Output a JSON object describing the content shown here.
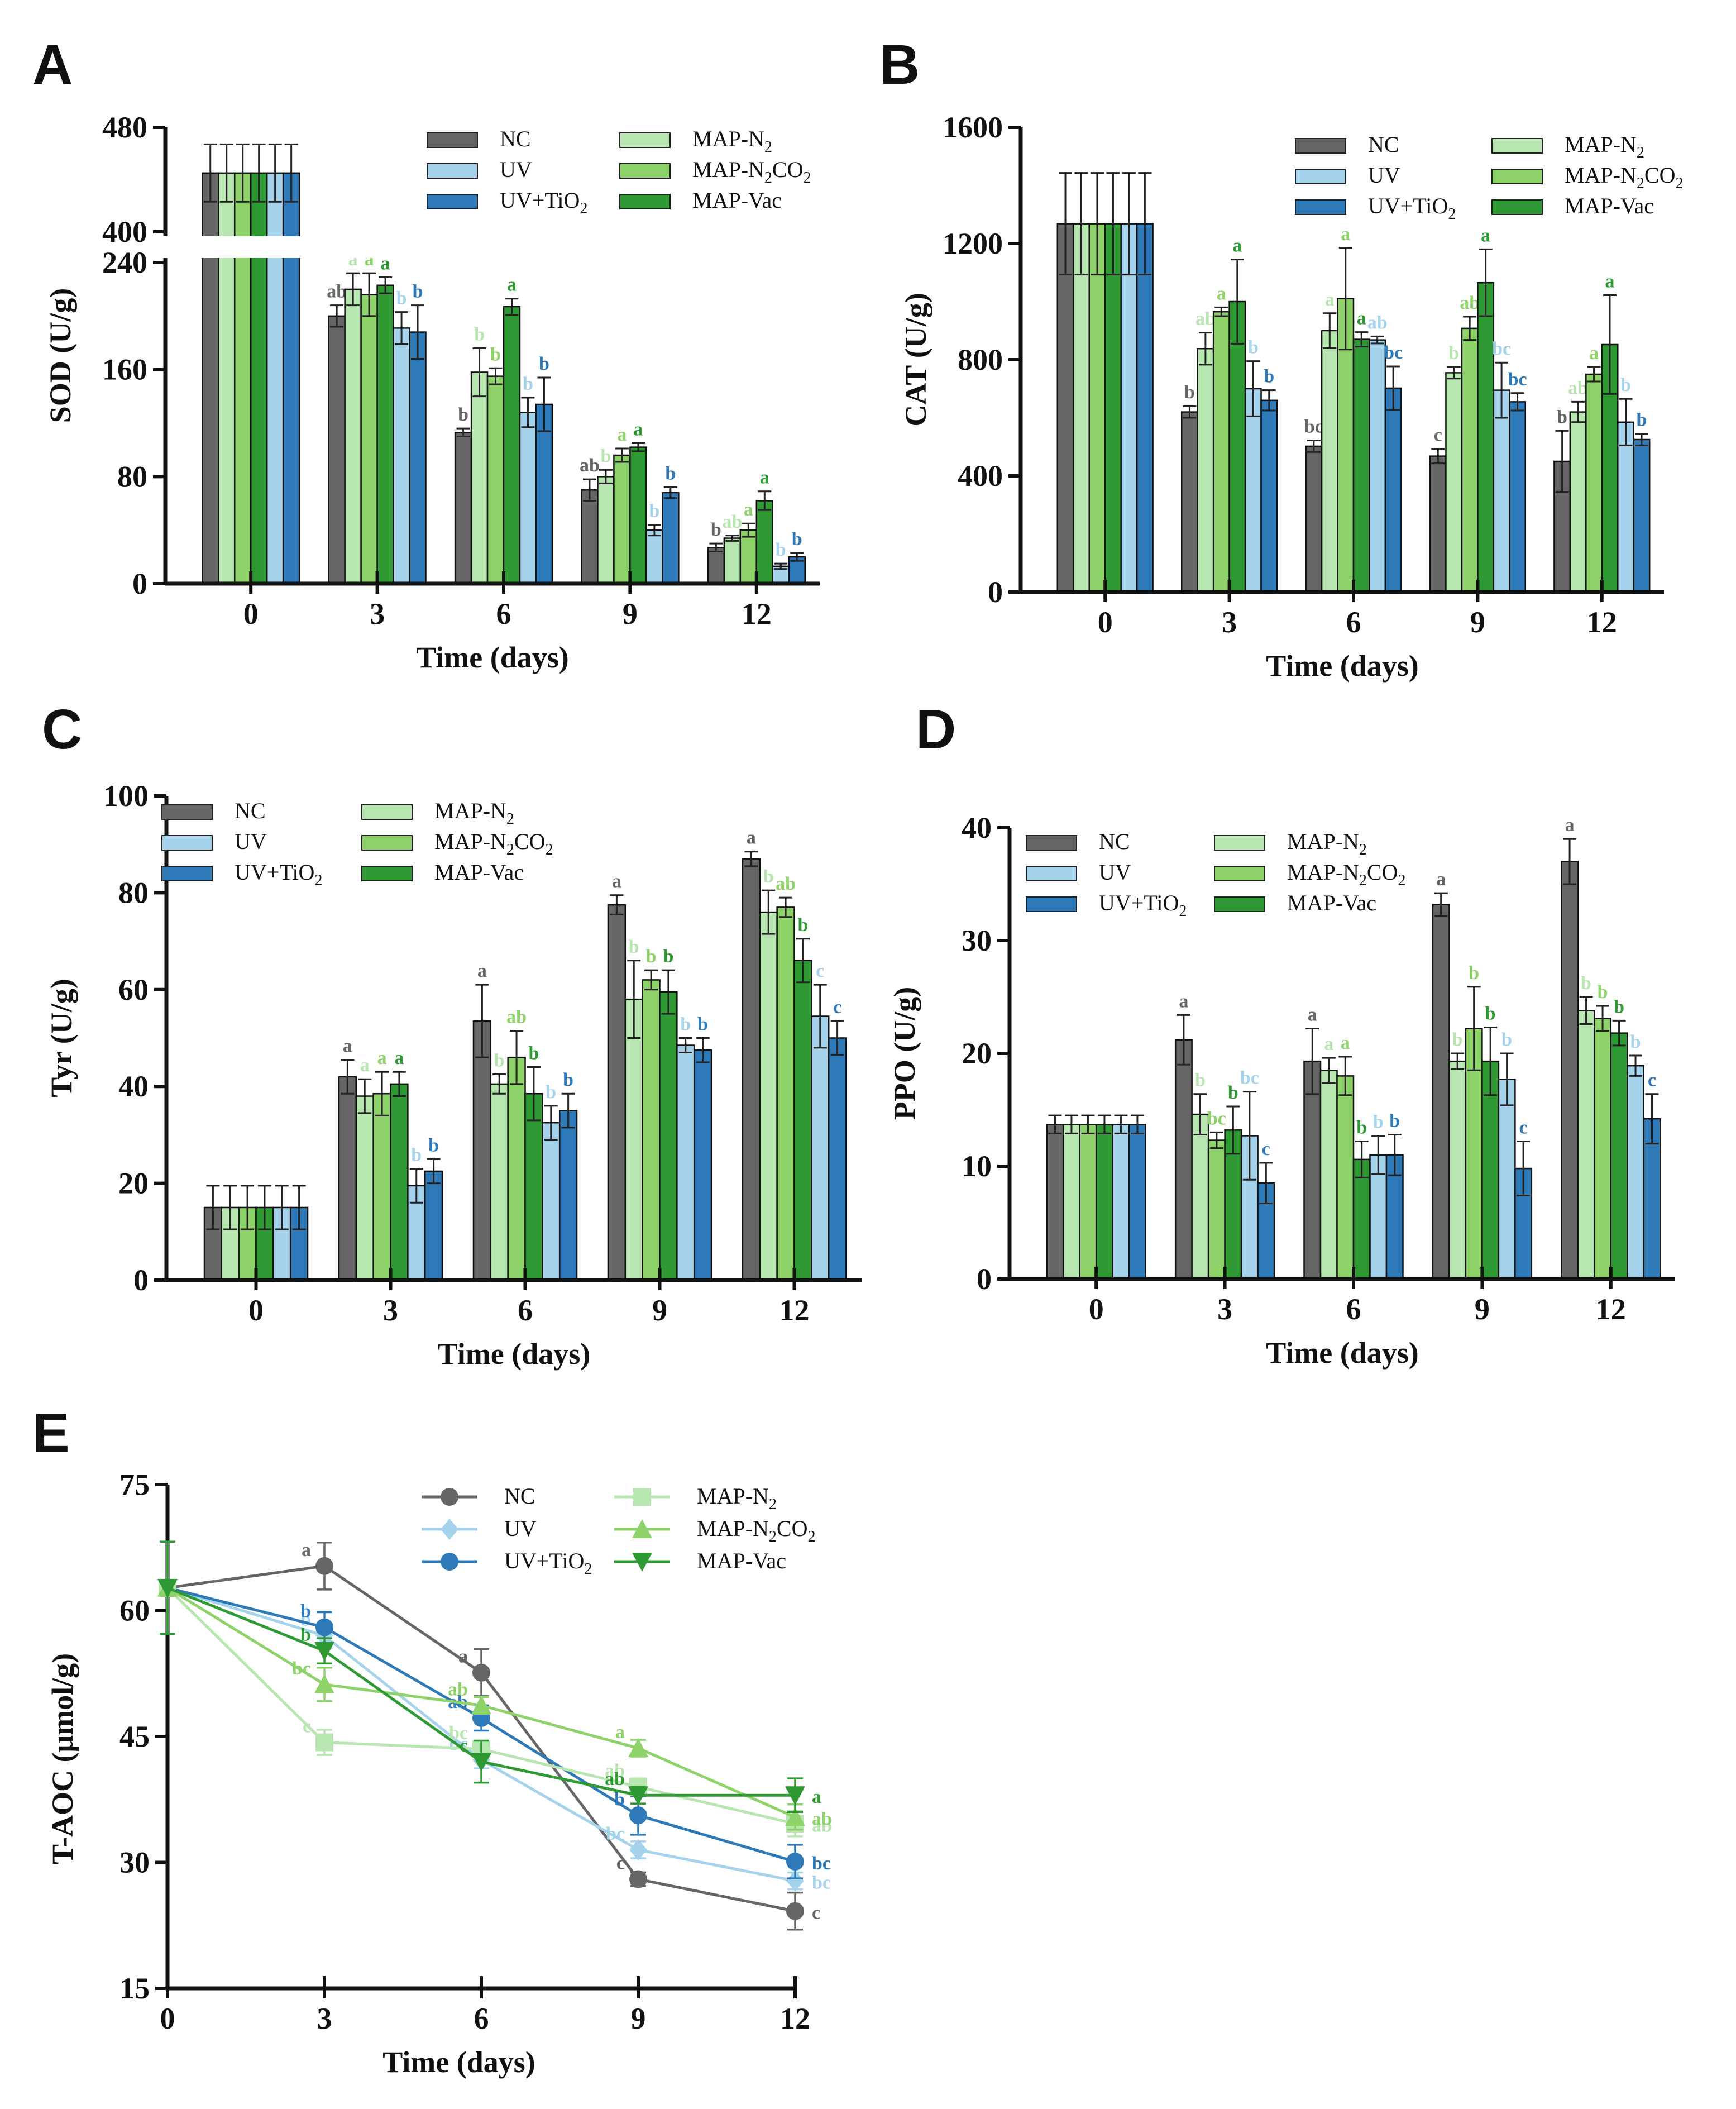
{
  "figure": {
    "colors": {
      "NC": "#666666",
      "UV": "#a6d3ec",
      "UV+TiO2": "#2e79b8",
      "MAP-N2": "#b8e6b0",
      "MAP-N2CO2": "#8ed26a",
      "MAP-Vac": "#2f9a33"
    },
    "series_order": [
      "NC",
      "MAP-N2",
      "MAP-N2CO2",
      "MAP-Vac",
      "UV",
      "UV+TiO2"
    ],
    "legend_bar": [
      {
        "key": "NC",
        "label": "NC",
        "sub": ""
      },
      {
        "key": "UV",
        "label": "UV",
        "sub": ""
      },
      {
        "key": "UV+TiO2",
        "label": "UV+TiO",
        "sub": "2"
      },
      {
        "key": "MAP-N2",
        "label": "MAP-N",
        "sub": "2"
      },
      {
        "key": "MAP-N2CO2",
        "label": "MAP-N",
        "sub": "2",
        "label2": "CO",
        "sub2": "2"
      },
      {
        "key": "MAP-Vac",
        "label": "MAP-Vac",
        "sub": ""
      }
    ]
  },
  "chart_data": [
    {
      "panel": "A",
      "type": "bar",
      "ylabel": "SOD (U/g)",
      "xlabel": "Time (days)",
      "categories": [
        "0",
        "3",
        "6",
        "9",
        "12"
      ],
      "ylim": [
        0,
        480
      ],
      "axis_break": [
        240,
        400
      ],
      "yticks": [
        "0",
        "80",
        "160",
        "240",
        "400",
        "480"
      ],
      "series": [
        {
          "name": "NC",
          "values": [
            445,
            200,
            113,
            70,
            27
          ],
          "errors": [
            22,
            8,
            3,
            8,
            3
          ],
          "labels": [
            "",
            "ab",
            "b",
            "ab",
            "b"
          ]
        },
        {
          "name": "MAP-N2",
          "values": [
            445,
            220,
            158,
            80,
            34
          ],
          "errors": [
            22,
            12,
            18,
            5,
            2
          ],
          "labels": [
            "",
            "a",
            "b",
            "b",
            "ab"
          ]
        },
        {
          "name": "MAP-N2CO2",
          "values": [
            445,
            216,
            155,
            96,
            40
          ],
          "errors": [
            22,
            16,
            6,
            5,
            5
          ],
          "labels": [
            "",
            "a",
            "b",
            "a",
            "a"
          ]
        },
        {
          "name": "MAP-Vac",
          "values": [
            445,
            223,
            207,
            102,
            62
          ],
          "errors": [
            22,
            6,
            6,
            3,
            7
          ],
          "labels": [
            "",
            "a",
            "a",
            "a",
            "a"
          ]
        },
        {
          "name": "UV",
          "values": [
            445,
            191,
            128,
            40,
            13
          ],
          "errors": [
            22,
            12,
            11,
            4,
            2
          ],
          "labels": [
            "",
            "b",
            "b",
            "b",
            "b"
          ]
        },
        {
          "name": "UV+TiO2",
          "values": [
            445,
            188,
            134,
            68,
            20
          ],
          "errors": [
            22,
            20,
            20,
            4,
            3
          ],
          "labels": [
            "",
            "b",
            "b",
            "b",
            "b"
          ]
        }
      ]
    },
    {
      "panel": "B",
      "type": "bar",
      "ylabel": "CAT (U/g)",
      "xlabel": "Time (days)",
      "categories": [
        "0",
        "3",
        "6",
        "9",
        "12"
      ],
      "ylim": [
        0,
        1600
      ],
      "yticks": [
        "0",
        "400",
        "800",
        "1200",
        "1600"
      ],
      "series": [
        {
          "name": "NC",
          "values": [
            1268,
            620,
            502,
            468,
            450
          ],
          "errors": [
            175,
            20,
            20,
            25,
            105
          ],
          "labels": [
            "",
            "b",
            "bc",
            "c",
            "b"
          ]
        },
        {
          "name": "MAP-N2",
          "values": [
            1268,
            838,
            900,
            755,
            620
          ],
          "errors": [
            175,
            55,
            60,
            20,
            35
          ],
          "labels": [
            "",
            "ab",
            "a",
            "b",
            "ab"
          ]
        },
        {
          "name": "MAP-N2CO2",
          "values": [
            1268,
            965,
            1010,
            908,
            750
          ],
          "errors": [
            175,
            15,
            175,
            40,
            25
          ],
          "labels": [
            "",
            "a",
            "a",
            "ab",
            "a"
          ]
        },
        {
          "name": "MAP-Vac",
          "values": [
            1268,
            1000,
            870,
            1065,
            852
          ],
          "errors": [
            175,
            145,
            25,
            115,
            170
          ],
          "labels": [
            "",
            "a",
            "a",
            "a",
            "a"
          ]
        },
        {
          "name": "UV",
          "values": [
            1268,
            700,
            868,
            695,
            585
          ],
          "errors": [
            175,
            95,
            12,
            95,
            80
          ],
          "labels": [
            "",
            "b",
            "ab",
            "bc",
            "b"
          ]
        },
        {
          "name": "UV+TiO2",
          "values": [
            1268,
            660,
            702,
            655,
            525
          ],
          "errors": [
            175,
            35,
            75,
            30,
            20
          ],
          "labels": [
            "",
            "b",
            "bc",
            "bc",
            "b"
          ]
        }
      ]
    },
    {
      "panel": "C",
      "type": "bar",
      "ylabel": "Tyr (U/g)",
      "xlabel": "Time (days)",
      "categories": [
        "0",
        "3",
        "6",
        "9",
        "12"
      ],
      "ylim": [
        0,
        100
      ],
      "yticks": [
        "0",
        "20",
        "40",
        "60",
        "80",
        "100"
      ],
      "series": [
        {
          "name": "NC",
          "values": [
            15,
            42,
            53.5,
            77.5,
            87
          ],
          "errors": [
            4.5,
            3.5,
            7.5,
            2,
            1.5
          ],
          "labels": [
            "",
            "a",
            "a",
            "a",
            "a"
          ]
        },
        {
          "name": "MAP-N2",
          "values": [
            15,
            38,
            40.5,
            58,
            76
          ],
          "errors": [
            4.5,
            3.5,
            2,
            8,
            4.5
          ],
          "labels": [
            "",
            "a",
            "b",
            "b",
            "b"
          ]
        },
        {
          "name": "MAP-N2CO2",
          "values": [
            15,
            38.5,
            46,
            62,
            77
          ],
          "errors": [
            4.5,
            4.5,
            5.5,
            2,
            2
          ],
          "labels": [
            "",
            "a",
            "ab",
            "b",
            "ab"
          ]
        },
        {
          "name": "MAP-Vac",
          "values": [
            15,
            40.5,
            38.5,
            59.5,
            66
          ],
          "errors": [
            4.5,
            2.5,
            5.5,
            4.5,
            4.5
          ],
          "labels": [
            "",
            "a",
            "b",
            "b",
            "b"
          ]
        },
        {
          "name": "UV",
          "values": [
            15,
            19.5,
            32.5,
            48.5,
            54.5
          ],
          "errors": [
            4.5,
            3.5,
            3.5,
            1.5,
            6.5
          ],
          "labels": [
            "",
            "b",
            "b",
            "b",
            "c"
          ]
        },
        {
          "name": "UV+TiO2",
          "values": [
            15,
            22.5,
            35,
            47.5,
            50
          ],
          "errors": [
            4.5,
            2.5,
            3.5,
            2.5,
            3.5
          ],
          "labels": [
            "",
            "b",
            "b",
            "b",
            "c"
          ]
        }
      ]
    },
    {
      "panel": "D",
      "type": "bar",
      "ylabel": "PPO (U/g)",
      "xlabel": "Time (days)",
      "categories": [
        "0",
        "3",
        "6",
        "9",
        "12"
      ],
      "ylim": [
        0,
        40
      ],
      "yticks": [
        "0",
        "10",
        "20",
        "30",
        "40"
      ],
      "series": [
        {
          "name": "NC",
          "values": [
            13.7,
            21.2,
            19.3,
            33.2,
            37
          ],
          "errors": [
            0.8,
            2.2,
            2.9,
            1,
            2
          ],
          "labels": [
            "",
            "a",
            "a",
            "a",
            "a"
          ]
        },
        {
          "name": "MAP-N2",
          "values": [
            13.7,
            14.6,
            18.5,
            19.3,
            23.8
          ],
          "errors": [
            0.8,
            1.8,
            1.1,
            0.7,
            1.2
          ],
          "labels": [
            "",
            "b",
            "a",
            "b",
            "b"
          ]
        },
        {
          "name": "MAP-N2CO2",
          "values": [
            13.7,
            12.3,
            18,
            22.2,
            23.1
          ],
          "errors": [
            0.8,
            0.7,
            1.7,
            3.7,
            1.1
          ],
          "labels": [
            "",
            "bc",
            "a",
            "b",
            "b"
          ]
        },
        {
          "name": "MAP-Vac",
          "values": [
            13.7,
            13.2,
            10.6,
            19.3,
            21.8
          ],
          "errors": [
            0.8,
            2.1,
            1.6,
            3,
            1.1
          ],
          "labels": [
            "",
            "b",
            "b",
            "b",
            "b"
          ]
        },
        {
          "name": "UV",
          "values": [
            13.7,
            12.7,
            11,
            17.7,
            18.9
          ],
          "errors": [
            0.8,
            3.9,
            1.7,
            2.3,
            0.9
          ],
          "labels": [
            "",
            "bc",
            "b",
            "b",
            "b"
          ]
        },
        {
          "name": "UV+TiO2",
          "values": [
            13.7,
            8.5,
            11,
            9.8,
            14.2
          ],
          "errors": [
            0.8,
            1.8,
            1.8,
            2.4,
            2.2
          ],
          "labels": [
            "",
            "c",
            "b",
            "c",
            "c"
          ]
        }
      ]
    },
    {
      "panel": "E",
      "type": "line",
      "ylabel": "T-AOC  (μmol/g)",
      "xlabel": "Time (days)",
      "x": [
        0,
        3,
        6,
        9,
        12
      ],
      "categories": [
        "0",
        "3",
        "6",
        "9",
        "12"
      ],
      "ylim": [
        15,
        75
      ],
      "yticks": [
        "15",
        "30",
        "45",
        "60",
        "75"
      ],
      "series": [
        {
          "name": "NC",
          "marker": "circle",
          "values": [
            62.7,
            65.3,
            52.6,
            28,
            24.2
          ],
          "errors": [
            5.5,
            2.8,
            2.8,
            0.8,
            2.2
          ],
          "labels": [
            "",
            "a",
            "a",
            "c",
            "c"
          ]
        },
        {
          "name": "UV",
          "marker": "diamond",
          "values": [
            62.7,
            57,
            42.2,
            31.5,
            27.8
          ],
          "errors": [
            5.5,
            1.5,
            1,
            1,
            1
          ],
          "labels": [
            "",
            "b",
            "bc",
            "bc",
            "bc"
          ]
        },
        {
          "name": "UV+TiO2",
          "marker": "circle",
          "values": [
            62.7,
            58,
            47.2,
            35.6,
            30.1
          ],
          "errors": [
            5.5,
            1.8,
            1.5,
            2.3,
            2
          ],
          "labels": [
            "",
            "b",
            "ab",
            "b",
            "bc"
          ]
        },
        {
          "name": "MAP-N2",
          "marker": "square",
          "values": [
            62.7,
            44.3,
            43.5,
            39,
            34.6
          ],
          "errors": [
            5.5,
            1.5,
            1,
            1,
            1.5
          ],
          "labels": [
            "",
            "c",
            "bc",
            "ab",
            "ab"
          ]
        },
        {
          "name": "MAP-N2CO2",
          "marker": "triangle",
          "values": [
            62.7,
            51.2,
            48.7,
            43.6,
            35.4
          ],
          "errors": [
            5.5,
            2,
            1,
            1,
            1.5
          ],
          "labels": [
            "",
            "bc",
            "ab",
            "a",
            "ab"
          ]
        },
        {
          "name": "MAP-Vac",
          "marker": "triangle-down",
          "values": [
            62.7,
            55.2,
            42,
            38,
            38
          ],
          "errors": [
            5.5,
            1.5,
            2.5,
            1,
            2
          ],
          "labels": [
            "",
            "b",
            "c",
            "ab",
            "a"
          ]
        }
      ]
    }
  ]
}
